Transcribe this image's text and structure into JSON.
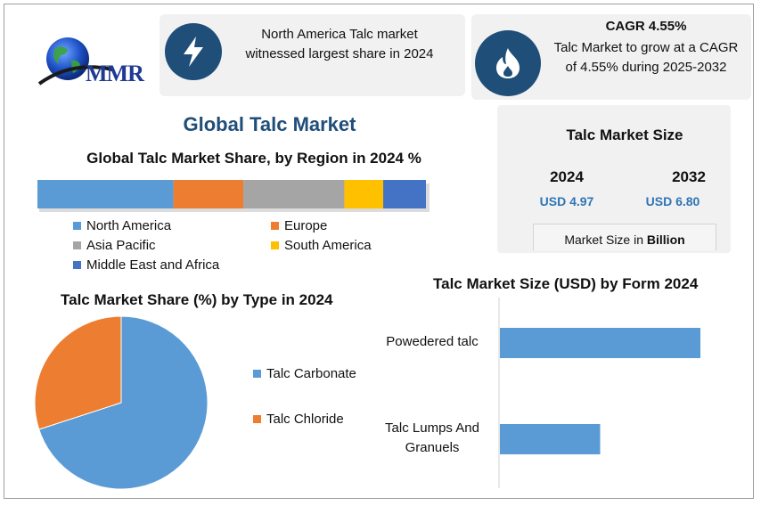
{
  "brand": {
    "logo_text": "MMR"
  },
  "highlights": {
    "region": {
      "icon": "lightning-icon",
      "text_line1": "North America Talc market",
      "text_line2": "witnessed largest share in 2024"
    },
    "cagr": {
      "icon": "flame-icon",
      "title": "CAGR 4.55%",
      "text_line1": "Talc Market to grow at a CAGR",
      "text_line2": "of 4.55% during 2025-2032"
    }
  },
  "page_title": "Global Talc Market",
  "market_size": {
    "title": "Talc Market Size",
    "years": [
      "2024",
      "2032"
    ],
    "values": [
      "USD 4.97",
      "USD 6.80"
    ],
    "unit_prefix": "Market Size in ",
    "unit": "Billion"
  },
  "colors": {
    "blue": "#5b9bd5",
    "orange": "#ed7d31",
    "gray": "#a5a5a5",
    "yellow": "#ffc000",
    "dark_blue": "#4472c4",
    "navy": "#1f4e79",
    "value_blue": "#2e75b6"
  },
  "chart_data": [
    {
      "type": "bar",
      "orientation": "horizontal-stacked",
      "title": "Global Talc Market Share, by Region in 2024 %",
      "series": [
        {
          "name": "North America",
          "value": 35,
          "color": "#5b9bd5"
        },
        {
          "name": "Europe",
          "value": 18,
          "color": "#ed7d31"
        },
        {
          "name": "Asia Pacific",
          "value": 26,
          "color": "#a5a5a5"
        },
        {
          "name": "South America",
          "value": 10,
          "color": "#ffc000"
        },
        {
          "name": "Middle East and Africa",
          "value": 11,
          "color": "#4472c4"
        }
      ],
      "legend": "bottom"
    },
    {
      "type": "pie",
      "title": "Talc Market Share (%) by Type in 2024",
      "slices": [
        {
          "name": "Talc Carbonate",
          "value": 70,
          "color": "#5b9bd5"
        },
        {
          "name": "Talc Chloride",
          "value": 30,
          "color": "#ed7d31"
        }
      ],
      "legend": "right"
    },
    {
      "type": "bar",
      "orientation": "horizontal",
      "title": "Talc Market Size (USD) by Form 2024",
      "categories": [
        "Powedered talc",
        "Talc Lumps And Granuels"
      ],
      "category_lines": [
        [
          "Powedered talc"
        ],
        [
          "Talc Lumps And",
          "Granuels"
        ]
      ],
      "values": [
        3.0,
        1.5
      ],
      "xlim": [
        0,
        3.6
      ],
      "color": "#5b9bd5"
    }
  ]
}
